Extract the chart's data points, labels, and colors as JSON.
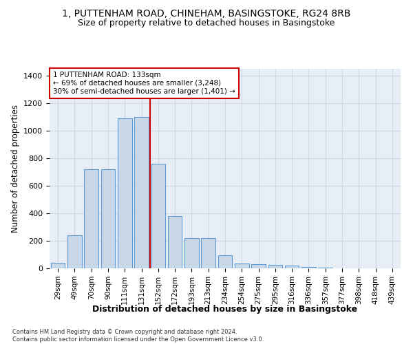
{
  "title_line1": "1, PUTTENHAM ROAD, CHINEHAM, BASINGSTOKE, RG24 8RB",
  "title_line2": "Size of property relative to detached houses in Basingstoke",
  "xlabel": "Distribution of detached houses by size in Basingstoke",
  "ylabel": "Number of detached properties",
  "footnote": "Contains HM Land Registry data © Crown copyright and database right 2024.\nContains public sector information licensed under the Open Government Licence v3.0.",
  "categories": [
    "29sqm",
    "49sqm",
    "70sqm",
    "90sqm",
    "111sqm",
    "131sqm",
    "152sqm",
    "172sqm",
    "193sqm",
    "213sqm",
    "234sqm",
    "254sqm",
    "275sqm",
    "295sqm",
    "316sqm",
    "336sqm",
    "357sqm",
    "377sqm",
    "398sqm",
    "418sqm",
    "439sqm"
  ],
  "values": [
    40,
    240,
    720,
    720,
    1090,
    1100,
    760,
    380,
    220,
    220,
    95,
    35,
    30,
    25,
    20,
    10,
    5,
    0,
    0,
    0,
    0
  ],
  "bar_color": "#c8d8e8",
  "bar_edge_color": "#5b9bd5",
  "vline_x": 5.5,
  "vline_color": "#cc0000",
  "annotation_text": "1 PUTTENHAM ROAD: 133sqm\n← 69% of detached houses are smaller (3,248)\n30% of semi-detached houses are larger (1,401) →",
  "annotation_box_color": "#ffffff",
  "annotation_box_edge": "#cc0000",
  "ylim": [
    0,
    1450
  ],
  "yticks": [
    0,
    200,
    400,
    600,
    800,
    1000,
    1200,
    1400
  ],
  "background_color": "#ffffff",
  "grid_color": "#d0d8e8"
}
